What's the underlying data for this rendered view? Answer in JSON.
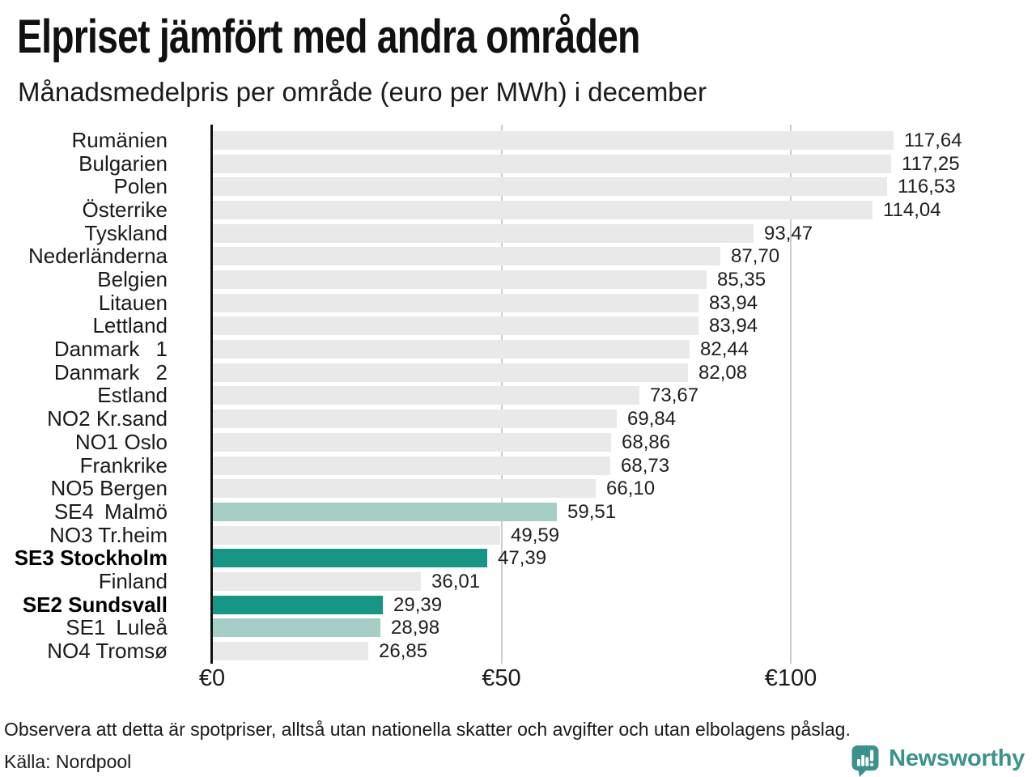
{
  "chart_data": {
    "type": "bar",
    "orientation": "horizontal",
    "title": "Elpriset jämfört med andra områden",
    "subtitle": "Månadsmedelpris per område (euro per MWh) i december",
    "xlabel": "euro per MWh",
    "xlim": [
      0,
      142
    ],
    "grid": "vertical",
    "legend_position": "none",
    "x_ticks": [
      {
        "value": 0,
        "label": "€0"
      },
      {
        "value": 50,
        "label": "€50"
      },
      {
        "value": 100,
        "label": "€100"
      }
    ],
    "rows": [
      {
        "label": "Rumänien",
        "value": 117.64,
        "display": "117,64",
        "style": "base",
        "bold": false
      },
      {
        "label": "Bulgarien",
        "value": 117.25,
        "display": "117,25",
        "style": "base",
        "bold": false
      },
      {
        "label": "Polen",
        "value": 116.53,
        "display": "116,53",
        "style": "base",
        "bold": false
      },
      {
        "label": "Österrike",
        "value": 114.04,
        "display": "114,04",
        "style": "base",
        "bold": false
      },
      {
        "label": "Tyskland",
        "value": 93.47,
        "display": "93,47",
        "style": "base",
        "bold": false
      },
      {
        "label": "Nederländerna",
        "value": 87.7,
        "display": "87,70",
        "style": "base",
        "bold": false
      },
      {
        "label": "Belgien",
        "value": 85.35,
        "display": "85,35",
        "style": "base",
        "bold": false
      },
      {
        "label": "Litauen",
        "value": 83.94,
        "display": "83,94",
        "style": "base",
        "bold": false
      },
      {
        "label": "Lettland",
        "value": 83.94,
        "display": "83,94",
        "style": "base",
        "bold": false
      },
      {
        "label": "Danmark  1",
        "value": 82.44,
        "display": "82,44",
        "style": "base",
        "bold": false
      },
      {
        "label": "Danmark  2",
        "value": 82.08,
        "display": "82,08",
        "style": "base",
        "bold": false
      },
      {
        "label": "Estland",
        "value": 73.67,
        "display": "73,67",
        "style": "base",
        "bold": false
      },
      {
        "label": "NO2 Kr.sand",
        "value": 69.84,
        "display": "69,84",
        "style": "base",
        "bold": false
      },
      {
        "label": "NO1 Oslo",
        "value": 68.86,
        "display": "68,86",
        "style": "base",
        "bold": false
      },
      {
        "label": "Frankrike",
        "value": 68.73,
        "display": "68,73",
        "style": "base",
        "bold": false
      },
      {
        "label": "NO5 Bergen",
        "value": 66.1,
        "display": "66,10",
        "style": "base",
        "bold": false
      },
      {
        "label": "SE4 Malmö",
        "value": 59.51,
        "display": "59,51",
        "style": "light",
        "bold": false
      },
      {
        "label": "NO3 Tr.heim",
        "value": 49.59,
        "display": "49,59",
        "style": "base",
        "bold": false
      },
      {
        "label": "SE3 Stockholm",
        "value": 47.39,
        "display": "47,39",
        "style": "dark",
        "bold": true
      },
      {
        "label": "Finland",
        "value": 36.01,
        "display": "36,01",
        "style": "base",
        "bold": false
      },
      {
        "label": "SE2 Sundsvall",
        "value": 29.39,
        "display": "29,39",
        "style": "dark",
        "bold": true
      },
      {
        "label": "SE1 Luleå",
        "value": 28.98,
        "display": "28,98",
        "style": "light",
        "bold": false
      },
      {
        "label": "NO4 Tromsø",
        "value": 26.85,
        "display": "26,85",
        "style": "base",
        "bold": false
      }
    ],
    "colors": {
      "base": "#e9e9e9",
      "light": "#a5cec6",
      "dark": "#169685",
      "axis": "#111111",
      "gridline": "#cccccc"
    }
  },
  "footer": {
    "note": "Observera att detta är spotpriser, alltså utan nationella skatter och avgifter och utan elbolagens påslag.",
    "source": "Källa: Nordpool"
  },
  "brand": {
    "name": "Newsworthy",
    "color": "#3a938b"
  }
}
